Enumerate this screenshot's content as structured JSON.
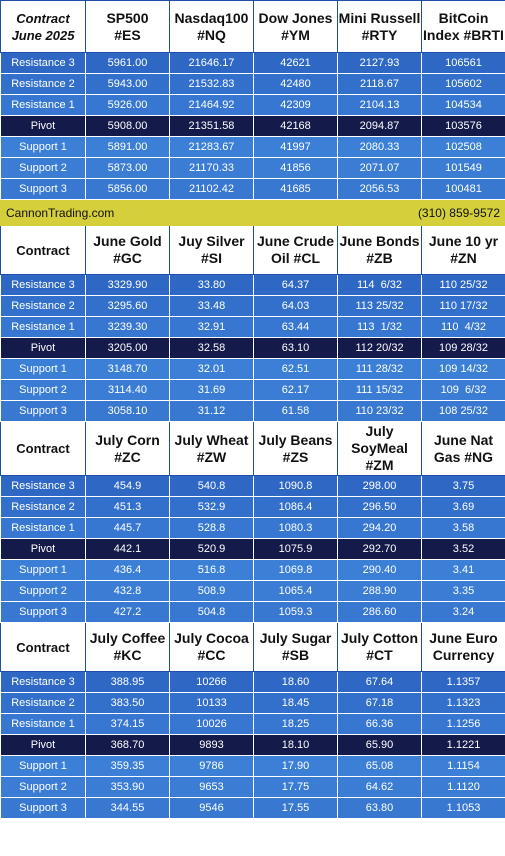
{
  "columns": 6,
  "colors": {
    "header_bg": "#ffffff",
    "resistance_bg": "#3370cb",
    "pivot_bg": "#141a4a",
    "support_bg": "#3b7dd4",
    "banner_bg": "#d4cf3a",
    "border": "#ffffff"
  },
  "row_labels": [
    "Resistance 3",
    "Resistance 2",
    "Resistance 1",
    "Pivot",
    "Support 1",
    "Support 2",
    "Support 3"
  ],
  "sections": [
    {
      "corner": [
        "Contract",
        "June 2025"
      ],
      "corner_italic": true,
      "headers": [
        [
          "SP500",
          "#ES"
        ],
        [
          "Nasdaq100",
          "#NQ"
        ],
        [
          "Dow Jones",
          "#YM"
        ],
        [
          "Mini Russell",
          "#RTY"
        ],
        [
          "BitCoin",
          "Index #BRTI"
        ]
      ],
      "rows": [
        [
          "5961.00",
          "21646.17",
          "42621",
          "2127.93",
          "106561"
        ],
        [
          "5943.00",
          "21532.83",
          "42480",
          "2118.67",
          "105602"
        ],
        [
          "5926.00",
          "21464.92",
          "42309",
          "2104.13",
          "104534"
        ],
        [
          "5908.00",
          "21351.58",
          "42168",
          "2094.87",
          "103576"
        ],
        [
          "5891.00",
          "21283.67",
          "41997",
          "2080.33",
          "102508"
        ],
        [
          "5873.00",
          "21170.33",
          "41856",
          "2071.07",
          "101549"
        ],
        [
          "5856.00",
          "21102.42",
          "41685",
          "2056.53",
          "100481"
        ]
      ]
    },
    {
      "corner": [
        "Contract"
      ],
      "corner_italic": false,
      "headers": [
        [
          "June Gold",
          "#GC"
        ],
        [
          "Juy Silver",
          "#SI"
        ],
        [
          "June Crude",
          "Oil #CL"
        ],
        [
          "June Bonds",
          "#ZB"
        ],
        [
          "June 10 yr",
          "#ZN"
        ]
      ],
      "rows": [
        [
          "3329.90",
          "33.80",
          "64.37",
          "114  6/32",
          "110 25/32"
        ],
        [
          "3295.60",
          "33.48",
          "64.03",
          "113 25/32",
          "110 17/32"
        ],
        [
          "3239.30",
          "32.91",
          "63.44",
          "113  1/32",
          "110  4/32"
        ],
        [
          "3205.00",
          "32.58",
          "63.10",
          "112 20/32",
          "109 28/32"
        ],
        [
          "3148.70",
          "32.01",
          "62.51",
          "111 28/32",
          "109 14/32"
        ],
        [
          "3114.40",
          "31.69",
          "62.17",
          "111 15/32",
          "109  6/32"
        ],
        [
          "3058.10",
          "31.12",
          "61.58",
          "110 23/32",
          "108 25/32"
        ]
      ]
    },
    {
      "corner": [
        "Contract"
      ],
      "corner_italic": false,
      "headers": [
        [
          "July Corn",
          "#ZC"
        ],
        [
          "July  Wheat",
          "#ZW"
        ],
        [
          "July Beans",
          "#ZS"
        ],
        [
          "July",
          "SoyMeal",
          "#ZM"
        ],
        [
          "June Nat",
          "Gas #NG"
        ]
      ],
      "rows": [
        [
          "454.9",
          "540.8",
          "1090.8",
          "298.00",
          "3.75"
        ],
        [
          "451.3",
          "532.9",
          "1086.4",
          "296.50",
          "3.69"
        ],
        [
          "445.7",
          "528.8",
          "1080.3",
          "294.20",
          "3.58"
        ],
        [
          "442.1",
          "520.9",
          "1075.9",
          "292.70",
          "3.52"
        ],
        [
          "436.4",
          "516.8",
          "1069.8",
          "290.40",
          "3.41"
        ],
        [
          "432.8",
          "508.9",
          "1065.4",
          "288.90",
          "3.35"
        ],
        [
          "427.2",
          "504.8",
          "1059.3",
          "286.60",
          "3.24"
        ]
      ]
    },
    {
      "corner": [
        "Contract"
      ],
      "corner_italic": false,
      "headers": [
        [
          "July Coffee",
          "#KC"
        ],
        [
          "July Cocoa",
          "#CC"
        ],
        [
          "July Sugar",
          "#SB"
        ],
        [
          "July Cotton",
          "#CT"
        ],
        [
          "June Euro",
          "Currency"
        ]
      ],
      "rows": [
        [
          "388.95",
          "10266",
          "18.60",
          "67.64",
          "1.1357"
        ],
        [
          "383.50",
          "10133",
          "18.45",
          "67.18",
          "1.1323"
        ],
        [
          "374.15",
          "10026",
          "18.25",
          "66.36",
          "1.1256"
        ],
        [
          "368.70",
          "9893",
          "18.10",
          "65.90",
          "1.1221"
        ],
        [
          "359.35",
          "9786",
          "17.90",
          "65.08",
          "1.1154"
        ],
        [
          "353.90",
          "9653",
          "17.75",
          "64.62",
          "1.1120"
        ],
        [
          "344.55",
          "9546",
          "17.55",
          "63.80",
          "1.1053"
        ]
      ]
    }
  ],
  "banner": {
    "left": "CannonTrading.com",
    "right": "(310) 859-9572"
  }
}
